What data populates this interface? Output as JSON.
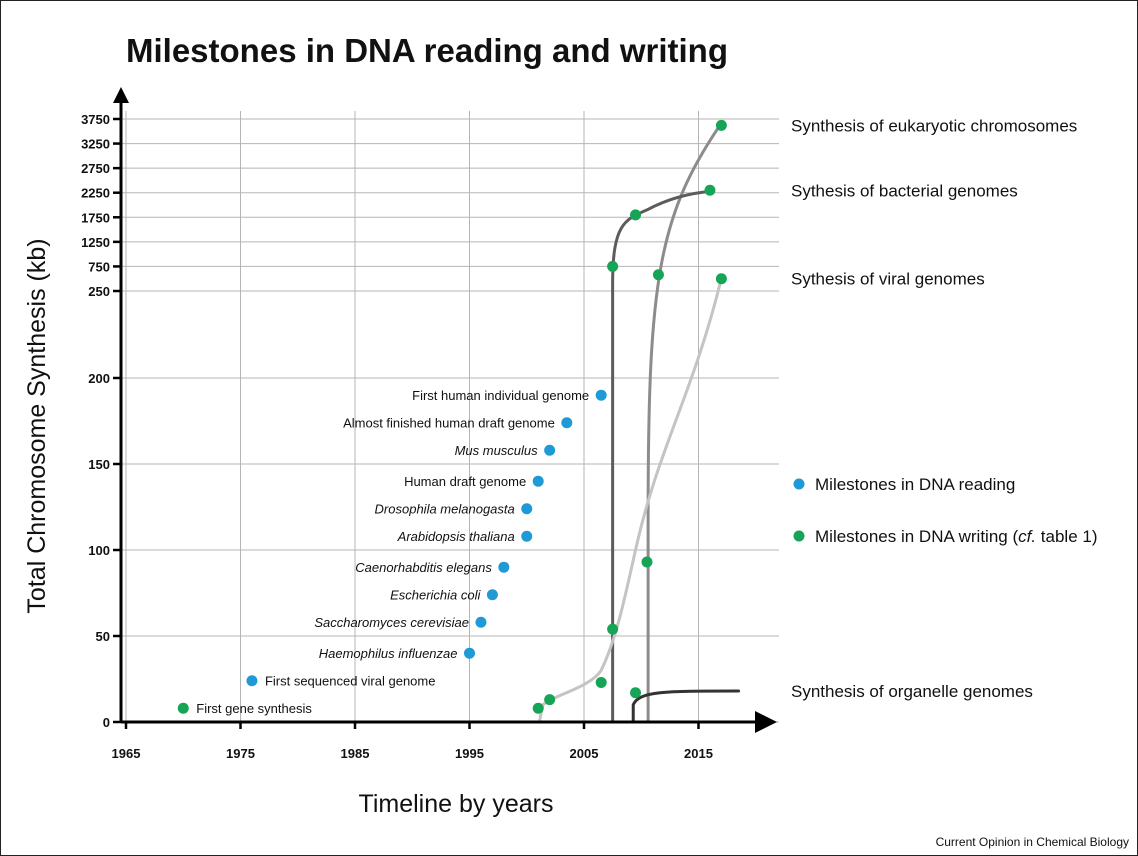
{
  "chart_data": {
    "type": "scatter",
    "title": "Milestones in DNA reading and writing",
    "xlabel": "Timeline by years",
    "ylabel": "Total Chromosome Synthesis (kb)",
    "credit": "Current Opinion in Chemical Biology",
    "x_ticks": [
      1965,
      1975,
      1985,
      1995,
      2005,
      2015
    ],
    "xlim": [
      1965,
      2018
    ],
    "y_ticks_lower": [
      0,
      50,
      100,
      150,
      200
    ],
    "y_ticks_upper": [
      250,
      750,
      1250,
      1750,
      2250,
      2750,
      3250,
      3750
    ],
    "grid": true,
    "colors": {
      "reading": "#1f9ad6",
      "writing": "#16a456"
    },
    "legend": {
      "placement": "right",
      "reading": "Milestones in DNA reading",
      "writing_prefix": "Milestones in DNA writing (",
      "writing_italic": "cf.",
      "writing_suffix": " table 1)"
    },
    "reading_points": [
      {
        "x": 1976,
        "y": 24,
        "label": "First sequenced viral genome",
        "italic": false,
        "side": "right"
      },
      {
        "x": 1995,
        "y": 40,
        "label": "Haemophilus influenzae",
        "italic": true,
        "side": "left"
      },
      {
        "x": 1996,
        "y": 58,
        "label": "Saccharomyces cerevisiae",
        "italic": true,
        "side": "left"
      },
      {
        "x": 1997,
        "y": 74,
        "label": "Escherichia coli",
        "italic": true,
        "side": "left"
      },
      {
        "x": 1998,
        "y": 90,
        "label": "Caenorhabditis elegans",
        "italic": true,
        "side": "left"
      },
      {
        "x": 2000,
        "y": 108,
        "label": "Arabidopsis thaliana",
        "italic": true,
        "side": "left"
      },
      {
        "x": 2000,
        "y": 124,
        "label": "Drosophila melanogasta",
        "italic": true,
        "side": "left"
      },
      {
        "x": 2001,
        "y": 140,
        "label": "Human draft genome",
        "italic": false,
        "side": "left"
      },
      {
        "x": 2002,
        "y": 158,
        "label": "Mus musculus",
        "italic": true,
        "side": "left"
      },
      {
        "x": 2003.5,
        "y": 174,
        "label": "Almost finished human draft genome",
        "italic": false,
        "side": "left"
      },
      {
        "x": 2006.5,
        "y": 190,
        "label": "First human individual genome",
        "italic": false,
        "side": "left"
      }
    ],
    "writing_points": [
      {
        "x": 1970,
        "y": 8,
        "label": "First gene synthesis",
        "side": "right"
      },
      {
        "x": 2001,
        "y": 8
      },
      {
        "x": 2002,
        "y": 13
      },
      {
        "x": 2006.5,
        "y": 23
      },
      {
        "x": 2007.5,
        "y": 54
      },
      {
        "x": 2009.5,
        "y": 17
      },
      {
        "x": 2010.5,
        "y": 93
      },
      {
        "x": 2007.5,
        "y": 750
      },
      {
        "x": 2009.5,
        "y": 1800
      },
      {
        "x": 2011.5,
        "y": 580
      },
      {
        "x": 2016,
        "y": 2300
      },
      {
        "x": 2017,
        "y": 3620
      },
      {
        "x": 2017,
        "y": 500
      }
    ],
    "curves": [
      {
        "name": "Synthesis of eukaryotic chromosomes",
        "color": "#8c8c8c"
      },
      {
        "name": "Sythesis of bacterial genomes",
        "color": "#5c5c5c"
      },
      {
        "name": "Sythesis of viral genomes",
        "color": "#c4c4c4"
      },
      {
        "name": "Synthesis of organelle genomes",
        "color": "#333333"
      }
    ]
  }
}
